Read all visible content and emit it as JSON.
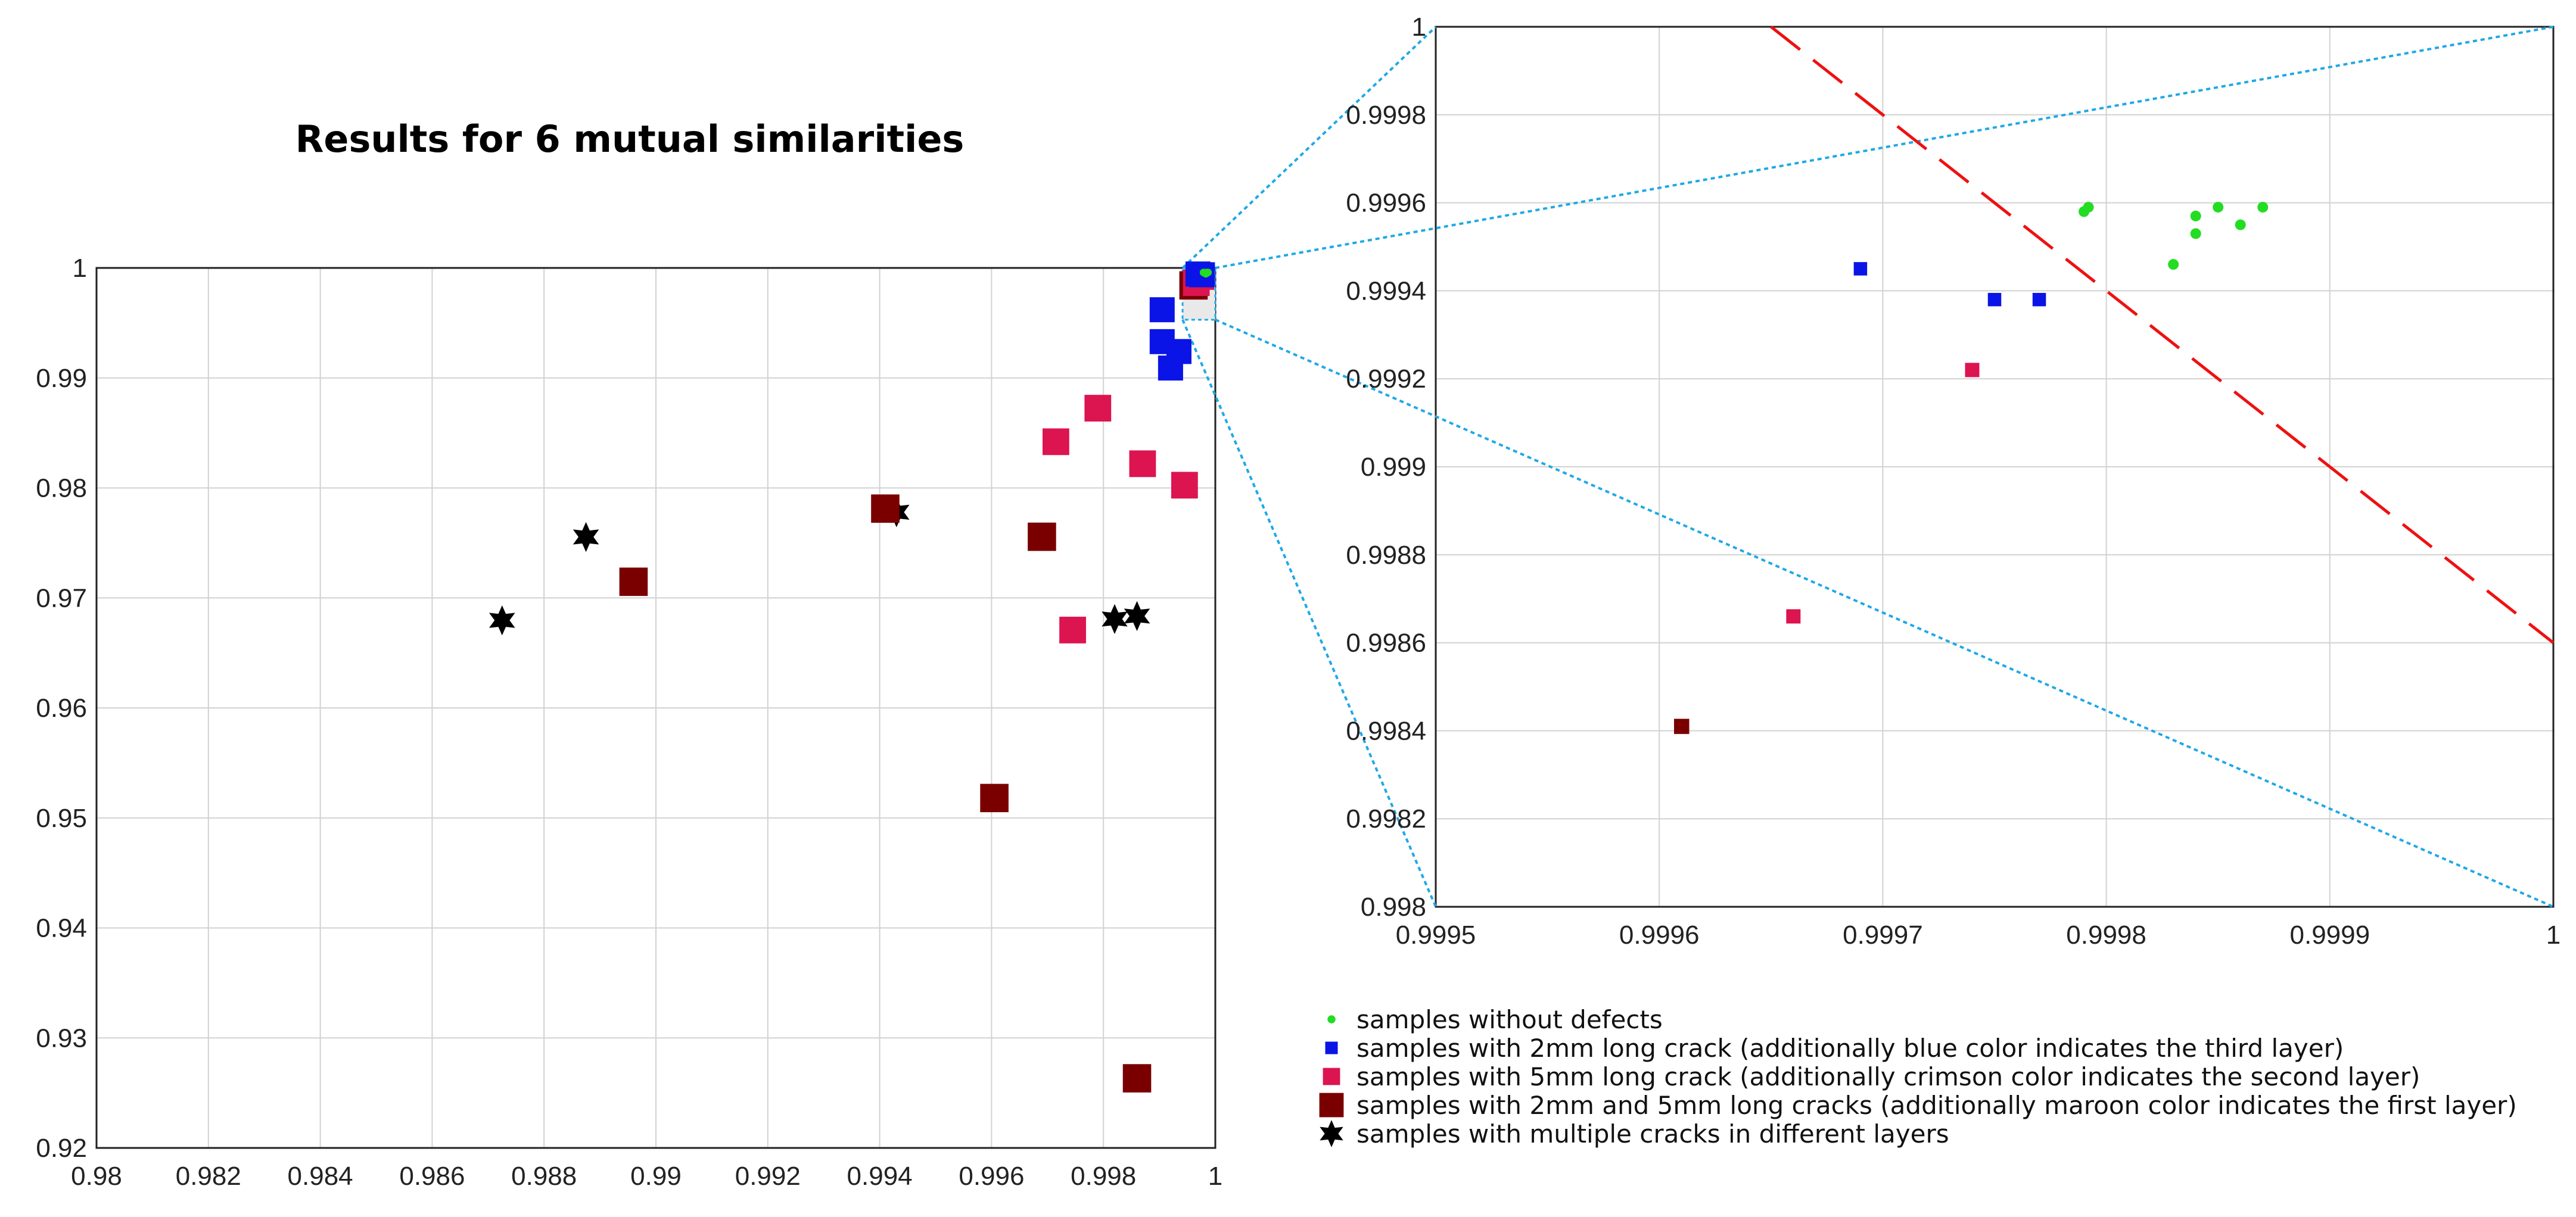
{
  "chart_data": [
    {
      "id": "main",
      "type": "scatter",
      "title": "Results for 6 mutual similarities",
      "xlabel": "",
      "ylabel": "",
      "xlim": [
        0.98,
        1.0
      ],
      "ylim": [
        0.92,
        1.0
      ],
      "grid": true,
      "x_ticks": [
        "0.98",
        "0.982",
        "0.984",
        "0.986",
        "0.988",
        "0.99",
        "0.992",
        "0.994",
        "0.996",
        "0.998",
        "1"
      ],
      "y_ticks": [
        "0.92",
        "0.93",
        "0.94",
        "0.95",
        "0.96",
        "0.97",
        "0.98",
        "0.99",
        "1"
      ],
      "zoom_region": {
        "x": [
          0.9995,
          1.0
        ],
        "y": [
          0.998,
          1.0
        ]
      },
      "series": [
        {
          "name": "multiple",
          "points": [
            [
              0.98725,
              0.96796
            ],
            [
              0.98875,
              0.97554
            ],
            [
              0.9943,
              0.97779
            ],
            [
              0.9982,
              0.96808
            ],
            [
              0.9986,
              0.96835
            ]
          ]
        },
        {
          "name": "maroon",
          "points": [
            [
              0.9896,
              0.97147
            ],
            [
              0.9941,
              0.97812
            ],
            [
              0.9969,
              0.97556
            ],
            [
              0.99605,
              0.95181
            ],
            [
              0.9986,
              0.92633
            ],
            [
              0.99961,
              0.99841
            ]
          ]
        },
        {
          "name": "crimson",
          "points": [
            [
              0.99715,
              0.9842
            ],
            [
              0.9979,
              0.98725
            ],
            [
              0.9987,
              0.9822
            ],
            [
              0.99945,
              0.98025
            ],
            [
              0.99745,
              0.96708
            ],
            [
              0.99966,
              0.99866
            ],
            [
              0.99974,
              0.99922
            ]
          ]
        },
        {
          "name": "blue",
          "points": [
            [
              0.99905,
              0.9962
            ],
            [
              0.99905,
              0.9933
            ],
            [
              0.99935,
              0.9924
            ],
            [
              0.9992,
              0.9909
            ],
            [
              0.99969,
              0.99945
            ],
            [
              0.99975,
              0.99938
            ],
            [
              0.99977,
              0.99938
            ]
          ]
        },
        {
          "name": "green",
          "points": [
            [
              0.99979,
              0.99958
            ],
            [
              0.99979,
              0.99959
            ],
            [
              0.99983,
              0.99946
            ],
            [
              0.99984,
              0.99953
            ],
            [
              0.99984,
              0.99957
            ],
            [
              0.99985,
              0.99959
            ],
            [
              0.99986,
              0.99955
            ],
            [
              0.99987,
              0.99959
            ]
          ]
        }
      ]
    },
    {
      "id": "zoom",
      "type": "scatter",
      "title": "",
      "xlabel": "",
      "ylabel": "",
      "xlim": [
        0.9995,
        1.0
      ],
      "ylim": [
        0.998,
        1.0
      ],
      "grid": true,
      "x_ticks": [
        "0.9995",
        "0.9996",
        "0.9997",
        "0.9998",
        "0.9999",
        "1"
      ],
      "y_ticks": [
        "0.998",
        "0.9982",
        "0.9984",
        "0.9986",
        "0.9988",
        "0.999",
        "0.9992",
        "0.9994",
        "0.9996",
        "0.9998",
        "1"
      ],
      "threshold_line": {
        "from": [
          0.99965,
          1.0
        ],
        "to": [
          1.0,
          0.9986
        ]
      },
      "series": [
        {
          "name": "green",
          "points": [
            [
              0.99979,
              0.99958
            ],
            [
              0.999792,
              0.99959
            ],
            [
              0.99983,
              0.99946
            ],
            [
              0.99984,
              0.99953
            ],
            [
              0.99984,
              0.99957
            ],
            [
              0.99985,
              0.99959
            ],
            [
              0.99986,
              0.99955
            ],
            [
              0.99987,
              0.99959
            ]
          ]
        },
        {
          "name": "blue",
          "points": [
            [
              0.99969,
              0.99945
            ],
            [
              0.99975,
              0.99938
            ],
            [
              0.99977,
              0.99938
            ]
          ]
        },
        {
          "name": "crimson",
          "points": [
            [
              0.99974,
              0.99922
            ],
            [
              0.99966,
              0.99866
            ]
          ]
        },
        {
          "name": "maroon",
          "points": [
            [
              0.99961,
              0.99841
            ]
          ]
        }
      ]
    }
  ],
  "legend": [
    {
      "key": "green",
      "marker": "dot",
      "label": "samples without defects"
    },
    {
      "key": "blue",
      "marker": "square-small",
      "label": "samples with 2mm long crack (additionally blue color indicates the third layer)"
    },
    {
      "key": "crimson",
      "marker": "square-medium",
      "label": "samples with 5mm long crack (additionally crimson color indicates the second layer)"
    },
    {
      "key": "maroon",
      "marker": "square-large",
      "label": "samples with 2mm and 5mm long cracks (additionally maroon color indicates the first layer)"
    },
    {
      "key": "multiple",
      "marker": "star",
      "label": "samples with multiple cracks in different layers"
    }
  ],
  "colors": {
    "green": "#22dd22",
    "blue": "#0a14e6",
    "crimson": "#dc1450",
    "maroon": "#7a0000",
    "multiple": "#000000",
    "threshold": "#ee1111",
    "zoom_connector": "#1fa8e6"
  }
}
